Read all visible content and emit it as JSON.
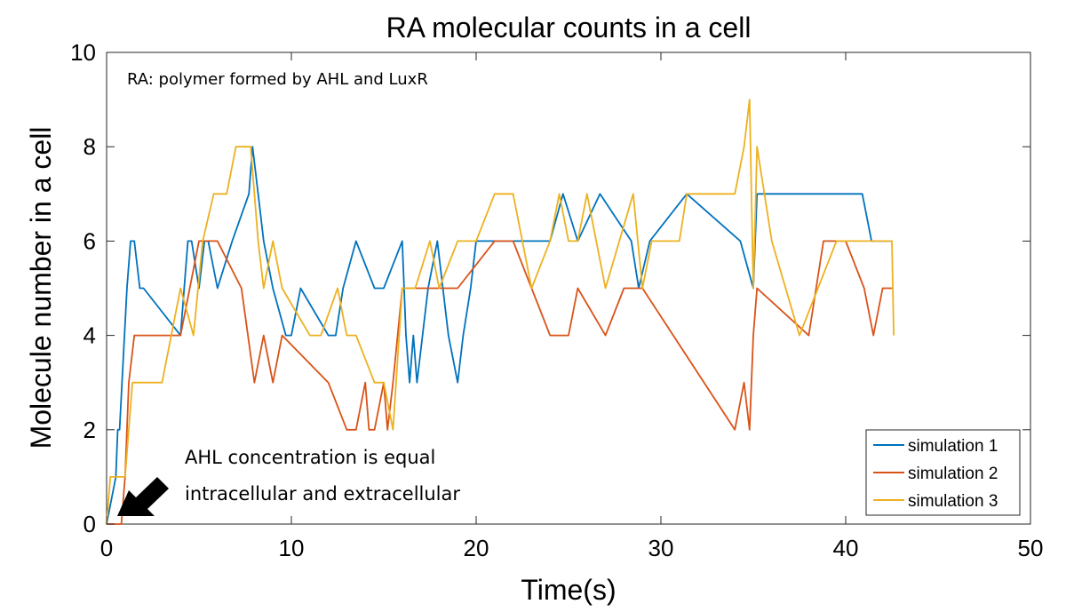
{
  "chart_data": {
    "type": "line",
    "title": "RA molecular counts in a cell",
    "xlabel": "Time(s)",
    "ylabel": "Molecule number in a cell",
    "xlim": [
      0,
      50
    ],
    "ylim": [
      0,
      10
    ],
    "xticks": [
      0,
      10,
      20,
      30,
      40,
      50
    ],
    "yticks": [
      0,
      2,
      4,
      6,
      8,
      10
    ],
    "grid": false,
    "legend_position": "bottom-right",
    "annotations": [
      {
        "text": "RA: polymer formed by AHL and LuxR"
      },
      {
        "text": "AHL concentration is equal"
      },
      {
        "text": "intracellular and extracellular"
      }
    ],
    "series": [
      {
        "name": "simulation 1",
        "color": "#0072BD",
        "x": [
          0,
          0.5,
          0.6,
          0.7,
          1.1,
          1.3,
          1.5,
          1.8,
          2.0,
          4.0,
          4.4,
          4.6,
          5.0,
          5.3,
          5.5,
          6.0,
          6.8,
          7.7,
          7.9,
          8.2,
          8.5,
          9.0,
          9.7,
          10.0,
          10.5,
          12.0,
          12.4,
          12.8,
          13.5,
          14.5,
          15.0,
          16.0,
          16.2,
          16.4,
          16.6,
          16.8,
          17.4,
          17.9,
          18.5,
          19.0,
          19.3,
          19.7,
          20.0,
          22.5,
          24.0,
          24.7,
          25.5,
          26.7,
          28.4,
          28.8,
          29.4,
          31.4,
          34.3,
          35.0,
          35.2,
          35.6,
          40.9,
          41.4,
          42.5
        ],
        "y": [
          0,
          1,
          2,
          2,
          5,
          6,
          6,
          5,
          5,
          4,
          6,
          6,
          5,
          6,
          6,
          5,
          6,
          7,
          8,
          7,
          6,
          5,
          4,
          4,
          5,
          4,
          4,
          5,
          6,
          5,
          5,
          6,
          4,
          3,
          4,
          3,
          5,
          6,
          4,
          3,
          4,
          5,
          6,
          6,
          6,
          7,
          6,
          7,
          6,
          5,
          6,
          7,
          6,
          5,
          7,
          7,
          7,
          6,
          6
        ]
      },
      {
        "name": "simulation 2",
        "color": "#D95319",
        "x": [
          0,
          0.8,
          1.0,
          1.2,
          1.5,
          2.0,
          4.0,
          5.0,
          5.5,
          6.0,
          7.3,
          8.0,
          8.5,
          9.0,
          9.5,
          12.0,
          13.0,
          13.5,
          14.0,
          14.2,
          14.5,
          15.0,
          15.2,
          15.5,
          16.0,
          17.5,
          19.0,
          21.0,
          22.0,
          23.0,
          24.0,
          25.0,
          25.5,
          27.0,
          28.0,
          28.5,
          29.0,
          34.0,
          34.5,
          34.8,
          35.0,
          35.2,
          38.0,
          38.8,
          40.0,
          41.0,
          41.5,
          42.0,
          42.5
        ],
        "y": [
          0,
          0,
          1,
          3,
          4,
          4,
          4,
          6,
          6,
          6,
          5,
          3,
          4,
          3,
          4,
          3,
          2,
          2,
          3,
          2,
          2,
          3,
          2,
          3,
          5,
          5,
          5,
          6,
          6,
          5,
          4,
          4,
          5,
          4,
          5,
          5,
          5,
          2,
          3,
          2,
          4,
          5,
          4,
          6,
          6,
          5,
          4,
          5,
          5
        ]
      },
      {
        "name": "simulation 3",
        "color": "#EDB120",
        "x": [
          0,
          0.2,
          0.5,
          1.0,
          1.4,
          2.0,
          3.0,
          3.5,
          4.0,
          4.7,
          5.2,
          5.8,
          6.5,
          7.0,
          7.8,
          8.2,
          8.5,
          9.0,
          9.5,
          11.0,
          11.6,
          12.5,
          13.0,
          13.5,
          14.5,
          15.0,
          15.5,
          16.0,
          16.7,
          17.5,
          18.0,
          19.0,
          20.0,
          21.0,
          22.0,
          23.0,
          24.0,
          24.5,
          25.0,
          25.5,
          26.0,
          27.0,
          28.5,
          29.0,
          29.5,
          30.0,
          31.0,
          31.4,
          32.5,
          33.0,
          34.0,
          34.5,
          34.8,
          35.0,
          35.2,
          36.0,
          37.5,
          38.5,
          39.5,
          40.0,
          41.0,
          42.0,
          42.5,
          42.6
        ],
        "y": [
          0,
          1,
          1,
          1,
          3,
          3,
          3,
          4,
          5,
          4,
          6,
          7,
          7,
          8,
          8,
          6,
          5,
          6,
          5,
          4,
          4,
          5,
          4,
          4,
          3,
          3,
          2,
          5,
          5,
          6,
          5,
          6,
          6,
          7,
          7,
          5,
          6,
          7,
          6,
          6,
          7,
          5,
          7,
          5,
          6,
          6,
          6,
          7,
          7,
          7,
          7,
          8,
          9,
          5,
          8,
          6,
          4,
          5,
          6,
          6,
          6,
          6,
          6,
          4
        ]
      }
    ]
  }
}
